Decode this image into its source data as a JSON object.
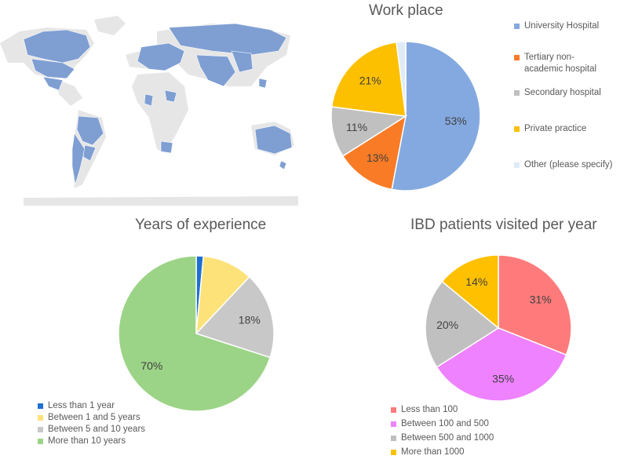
{
  "colors": {
    "map_land": "#e6e6e6",
    "map_highlight": "#7f9fd3"
  },
  "map_icon": "world-map",
  "chart_data": [
    {
      "id": "work_place",
      "type": "pie",
      "title": "Work place",
      "categories": [
        "University Hospital",
        "Tertiary non-academic hospital",
        "Secondary hospital",
        "Private practice",
        "Other (please specify)"
      ],
      "values": [
        53,
        13,
        11,
        21,
        2
      ],
      "data_labels": [
        "53%",
        "13%",
        "11%",
        "21%",
        ""
      ],
      "colors": [
        "#84a9e0",
        "#f97b26",
        "#c0c0c0",
        "#fcc000",
        "#deebf7"
      ],
      "legend_position": "right"
    },
    {
      "id": "years_experience",
      "type": "pie",
      "title": "Years of experience",
      "categories": [
        "Less than 1 year",
        "Between 1 and 5 years",
        "Between 5 and 10 years",
        "More than 10 years"
      ],
      "values": [
        1.5,
        10.5,
        18,
        70
      ],
      "data_labels": [
        "",
        "",
        "18%",
        "70%"
      ],
      "colors": [
        "#1f6fd0",
        "#fde27a",
        "#c8c8c8",
        "#9cd487"
      ],
      "legend_position": "bottom-left"
    },
    {
      "id": "ibd_patients",
      "type": "pie",
      "title": "IBD patients visited per year",
      "categories": [
        "Less than 100",
        "Between 100 and 500",
        "Between 500 and 1000",
        "More than 1000"
      ],
      "values": [
        31,
        35,
        20,
        14
      ],
      "data_labels": [
        "31%",
        "35%",
        "20%",
        "14%"
      ],
      "colors": [
        "#ff7b7b",
        "#ee82ff",
        "#c0c0c0",
        "#ffc000"
      ],
      "legend_position": "bottom-left"
    }
  ]
}
